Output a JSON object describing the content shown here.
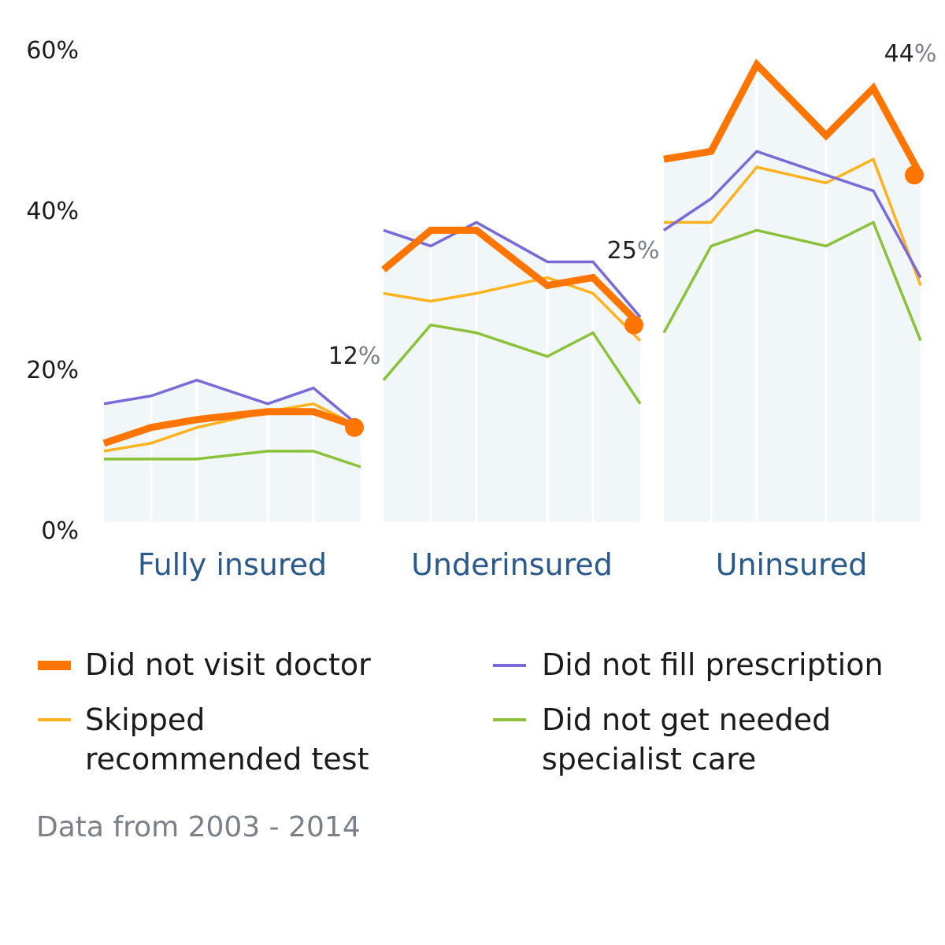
{
  "chart_data": {
    "type": "line",
    "groups": [
      "Fully insured",
      "Underinsured",
      "Uninsured"
    ],
    "y_ticks": [
      "0%",
      "20%",
      "40%",
      "60%"
    ],
    "ylim": [
      0,
      60
    ],
    "series": [
      {
        "key": "visit",
        "name": "Did not visit doctor",
        "color": "#ff7500",
        "values": [
          [
            10,
            12,
            13,
            14,
            14,
            12
          ],
          [
            32,
            37,
            37,
            30,
            31,
            25
          ],
          [
            46,
            47,
            58,
            49,
            55,
            44
          ]
        ]
      },
      {
        "key": "prescription",
        "name": "Did not fill prescription",
        "color": "#7a6ad8",
        "values": [
          [
            15,
            16,
            18,
            15,
            17,
            12
          ],
          [
            37,
            35,
            38,
            33,
            33,
            26
          ],
          [
            37,
            41,
            47,
            44,
            42,
            31
          ]
        ]
      },
      {
        "key": "test",
        "name": "Skipped recommended test",
        "color": "#ffb21e",
        "values": [
          [
            9,
            10,
            12,
            14,
            15,
            12
          ],
          [
            29,
            28,
            29,
            31,
            29,
            23
          ],
          [
            38,
            38,
            45,
            43,
            46,
            30
          ]
        ]
      },
      {
        "key": "specialist",
        "name": "Did not get needed specialist care",
        "color": "#8bc23a",
        "values": [
          [
            8,
            8,
            8,
            9,
            9,
            7
          ],
          [
            18,
            25,
            24,
            21,
            24,
            15
          ],
          [
            24,
            35,
            37,
            35,
            38,
            23
          ]
        ]
      }
    ],
    "end_labels": [
      {
        "num": "12",
        "pct": "%"
      },
      {
        "num": "25",
        "pct": "%"
      },
      {
        "num": "44",
        "pct": "%"
      }
    ],
    "grid": true
  },
  "legend": {
    "visit": [
      "Did not visit doctor"
    ],
    "prescription": [
      "Did not fill prescription"
    ],
    "test": [
      "Skipped",
      "recommended test"
    ],
    "specialist": [
      "Did not get needed",
      "specialist care"
    ]
  },
  "footnote": "Data from 2003 - 2014"
}
